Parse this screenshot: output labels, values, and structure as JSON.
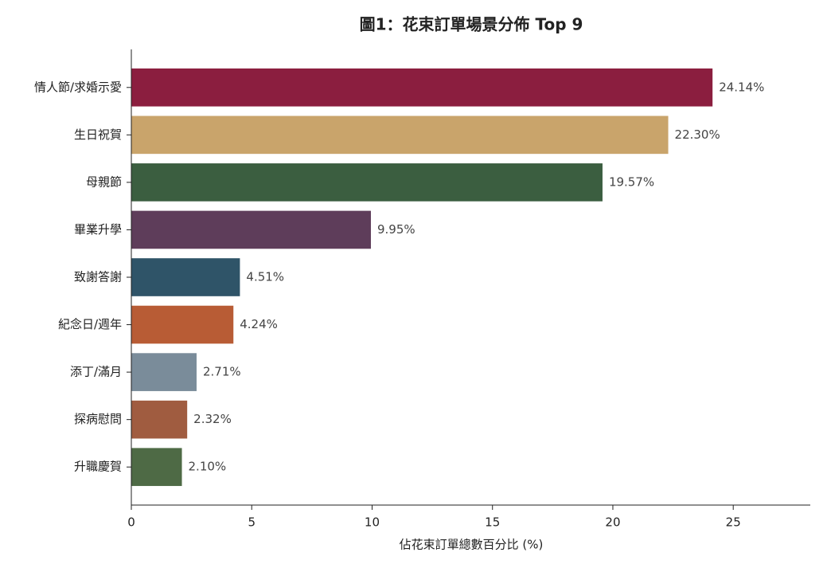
{
  "chart_data": {
    "type": "barh",
    "title": "圖1：花束訂單場景分佈 Top 9",
    "x_label": "佔花束訂單總數百分比 (%)",
    "categories": [
      "情人節/求婚示愛",
      "生日祝賀",
      "母親節",
      "畢業升學",
      "致謝答謝",
      "紀念日/週年",
      "添丁/滿月",
      "探病慰問",
      "升職慶賀"
    ],
    "values": [
      24.14,
      22.3,
      19.57,
      9.95,
      4.51,
      4.24,
      2.71,
      2.32,
      2.1
    ],
    "value_labels": [
      "24.14%",
      "22.30%",
      "19.57%",
      "9.95%",
      "4.51%",
      "4.24%",
      "2.71%",
      "2.32%",
      "2.10%"
    ],
    "colors": [
      "#8b1e3f",
      "#c9a46b",
      "#3b5e40",
      "#5e3d5a",
      "#2f5468",
      "#b85c35",
      "#7a8c9a",
      "#a05c40",
      "#4e6a45"
    ],
    "xlim": [
      0,
      28.2
    ],
    "xticks": [
      0,
      5,
      10,
      15,
      20,
      25
    ]
  }
}
